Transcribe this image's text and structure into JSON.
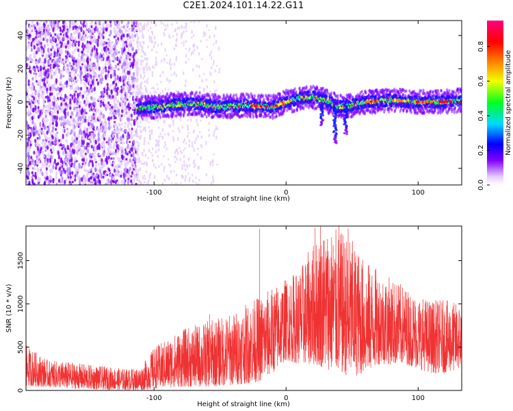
{
  "figure": {
    "title": "C2E1.2024.101.14.22.G11"
  },
  "colors": {
    "snr_line": "#f03232",
    "colorbar": [
      "#ffffff",
      "#e6ccff",
      "#8000ff",
      "#0000ff",
      "#00d9ff",
      "#00ff20",
      "#f2ff00",
      "#ff8000",
      "#ff0000",
      "#ff0080"
    ]
  },
  "chart_data": [
    {
      "type": "heatmap",
      "xlabel": "Height of straight line (km)",
      "ylabel": "Frequency (Hz)",
      "xlim": [
        -197,
        133
      ],
      "ylim": [
        -50,
        49
      ],
      "xticks": [
        -100,
        0,
        100
      ],
      "yticks": [
        -40,
        -20,
        0,
        20,
        40
      ],
      "grid": false,
      "colorbar": {
        "label": "Normalized spectral amplitude",
        "range": [
          0.0,
          0.95
        ],
        "ticks": [
          0.0,
          0.2,
          0.4,
          0.6,
          0.8
        ]
      },
      "features": {
        "noise_region_x": [
          -197,
          -113
        ],
        "sparse_noise_region_x": [
          -113,
          -50
        ],
        "signal_band_center_y": [
          [
            -113,
            -4
          ],
          [
            -90,
            -2
          ],
          [
            -70,
            -1
          ],
          [
            -50,
            -3
          ],
          [
            -30,
            -2
          ],
          [
            -10,
            -3
          ],
          [
            0,
            0
          ],
          [
            10,
            2
          ],
          [
            20,
            3
          ],
          [
            30,
            1
          ],
          [
            40,
            -3
          ],
          [
            50,
            -2
          ],
          [
            60,
            0
          ],
          [
            80,
            1
          ],
          [
            100,
            0
          ],
          [
            120,
            0
          ],
          [
            133,
            1
          ]
        ],
        "signal_band_half_width_y": 5,
        "peak_amplitude_x": [
          [
            -20,
            0.85
          ],
          [
            -5,
            0.85
          ],
          [
            0,
            0.7
          ],
          [
            65,
            0.8
          ],
          [
            85,
            0.75
          ],
          [
            105,
            0.85
          ],
          [
            120,
            0.9
          ]
        ],
        "dips": [
          [
            37,
            -25
          ],
          [
            45,
            -20
          ],
          [
            27,
            -14
          ]
        ]
      }
    },
    {
      "type": "line",
      "series": [
        {
          "name": "",
          "color": "#f03232"
        }
      ],
      "xlabel": "Height of straight line (km)",
      "ylabel": "SNR (10 * v/v)",
      "xlim": [
        -197,
        133
      ],
      "ylim": [
        0,
        1900
      ],
      "xticks": [
        -100,
        0,
        100
      ],
      "yticks": [
        0,
        500,
        1000,
        1500
      ],
      "grid": false,
      "envelope": {
        "x": [
          -197,
          -180,
          -160,
          -140,
          -120,
          -110,
          -100,
          -90,
          -80,
          -60,
          -40,
          -20,
          -10,
          0,
          10,
          20,
          30,
          40,
          50,
          60,
          70,
          80,
          90,
          100,
          110,
          120,
          133
        ],
        "low": [
          50,
          40,
          20,
          10,
          5,
          5,
          20,
          30,
          40,
          40,
          60,
          100,
          200,
          350,
          300,
          300,
          250,
          200,
          150,
          200,
          300,
          300,
          300,
          250,
          200,
          200,
          250
        ],
        "high": [
          520,
          350,
          320,
          280,
          250,
          270,
          500,
          600,
          700,
          800,
          900,
          1100,
          1200,
          1300,
          1400,
          1700,
          1900,
          1850,
          1750,
          1500,
          1400,
          1300,
          1200,
          1100,
          1050,
          1050,
          1000
        ]
      },
      "spikes": [
        [
          -20,
          1870
        ],
        [
          -58,
          880
        ],
        [
          22,
          1880
        ],
        [
          26,
          1900
        ],
        [
          40,
          1900
        ],
        [
          47,
          1870
        ]
      ]
    }
  ]
}
